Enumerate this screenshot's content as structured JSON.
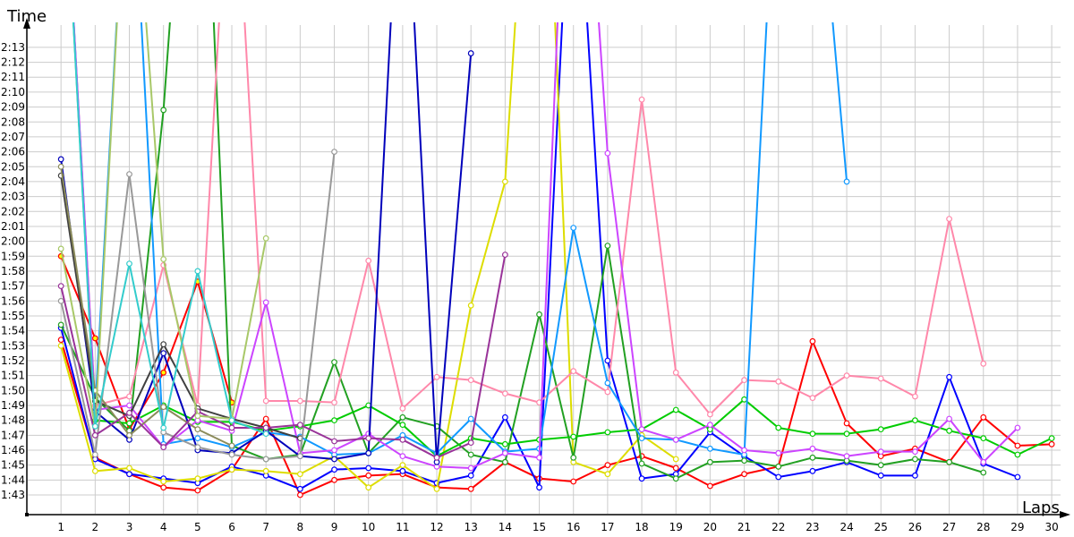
{
  "chart_data": {
    "type": "line",
    "title": "",
    "xlabel": "Laps",
    "ylabel": "Time",
    "xlim": [
      0,
      30.5
    ],
    "ylim": [
      "1:41.7",
      "2:14.7"
    ],
    "grid": true,
    "legend": "none",
    "x_ticks": [
      "1",
      "2",
      "3",
      "4",
      "5",
      "6",
      "7",
      "8",
      "9",
      "10",
      "11",
      "12",
      "13",
      "14",
      "15",
      "16",
      "17",
      "18",
      "19",
      "20",
      "21",
      "22",
      "23",
      "24",
      "25",
      "26",
      "27",
      "28",
      "29",
      "30"
    ],
    "y_ticks": [
      "1:43",
      "1:44",
      "1:45",
      "1:46",
      "1:47",
      "1:48",
      "1:49",
      "1:50",
      "1:51",
      "1:52",
      "1:53",
      "1:54",
      "1:55",
      "1:56",
      "1:57",
      "1:58",
      "1:59",
      "2:00",
      "2:01",
      "2:02",
      "2:03",
      "2:04",
      "2:05",
      "2:06",
      "2:07",
      "2:08",
      "2:09",
      "2:10",
      "2:11",
      "2:12",
      "2:13"
    ],
    "series": [
      {
        "color": "#ff0000",
        "marker_fill": "#ffffff",
        "values": [
          "1:53.4",
          "1:45.5",
          "1:44.4",
          "1:43.5",
          "1:43.3",
          "1:44.7",
          "1:48.1",
          "1:43.0",
          "1:44.0",
          "1:44.3",
          "1:44.4",
          "1:43.5",
          "1:43.4",
          "1:45.2",
          "1:44.1",
          "1:43.9",
          "1:45.0",
          "1:45.6",
          "1:44.8",
          "1:43.6",
          "1:44.4",
          "1:44.9",
          "1:53.3",
          "1:47.8",
          "1:45.6",
          "1:46.1",
          "1:45.2",
          "1:48.2",
          "1:46.3",
          "1:46.4"
        ]
      },
      {
        "color": "#ff0000",
        "marker_fill": "#ffff00",
        "values": [
          "1:59.0",
          "1:53.5",
          "1:47.4",
          "1:51.2",
          "1:57.3",
          "1:49.2"
        ]
      },
      {
        "color": "#0000ff",
        "marker_fill": "#ffffff",
        "values": [
          "1:54.2",
          "1:45.4",
          "1:44.4",
          "1:44.1",
          "1:43.8",
          "1:44.9",
          "1:44.3",
          "1:43.4",
          "1:44.7",
          "1:44.8",
          "1:44.6",
          "1:43.8",
          "1:44.3",
          "1:48.2",
          "1:43.5",
          "2:30.0",
          "1:52.0",
          "1:44.1",
          "1:44.4",
          "1:47.2",
          "1:45.6",
          "1:44.2",
          "1:44.6",
          "1:45.2",
          "1:44.3",
          "1:44.3",
          "1:50.9",
          "1:45.1",
          "1:44.2"
        ]
      },
      {
        "color": "#dddd00",
        "marker_fill": "#ffffff",
        "values": [
          "1:53.0",
          "1:44.6",
          "1:44.8",
          "1:43.9",
          "1:44.1",
          "1:44.7",
          "1:44.6",
          "1:44.4",
          "1:45.6",
          "1:43.5",
          "1:45.0",
          "1:43.4",
          "1:55.7",
          "2:04.0",
          "2:40.0",
          "1:45.2",
          "1:44.4",
          "1:47.0",
          "1:45.4"
        ]
      },
      {
        "color": "#22a022",
        "marker_fill": "#ffffff",
        "values": [
          "1:54.4",
          "1:49.5",
          "1:47.3",
          "2:08.8",
          "2:40.0",
          "1:46.3",
          "1:45.4",
          "1:45.7",
          "1:51.9",
          "1:45.8",
          "1:48.2",
          "1:47.6",
          "1:45.7",
          "1:45.2",
          "1:55.1",
          "1:45.5",
          "1:59.7",
          "1:45.1",
          "1:44.1",
          "1:45.2",
          "1:45.3",
          "1:44.9",
          "1:45.5",
          "1:45.3",
          "1:45.0",
          "1:45.4",
          "1:45.2",
          "1:44.5"
        ]
      },
      {
        "color": "#00cc00",
        "marker_fill": "#ffffff",
        "values": [
          "2:30.0",
          "1:48.0",
          "1:47.8",
          "1:49.0",
          "1:47.9",
          "1:47.9",
          "1:47.3",
          "1:47.6",
          "1:48.0",
          "1:49.0",
          "1:47.7",
          "1:45.6",
          "1:46.8",
          "1:46.4",
          "1:46.7",
          "1:46.9",
          "1:47.2",
          "1:47.4",
          "1:48.7",
          "1:47.4",
          "1:49.4",
          "1:47.5",
          "1:47.1",
          "1:47.1",
          "1:47.4",
          "1:48.0",
          "1:47.3",
          "1:46.8",
          "1:45.7",
          "1:46.8"
        ]
      },
      {
        "color": "#ff88aa",
        "marker_fill": "#ffffff",
        "values": [
          "2:30.0",
          "1:49.0",
          "1:49.6",
          "1:58.4",
          "1:49.0",
          "2:30.0",
          "1:49.3",
          "1:49.3",
          "1:49.2",
          "1:58.7",
          "1:48.8",
          "1:50.9",
          "1:50.7",
          "1:49.8",
          "1:49.2",
          "1:51.3",
          "1:49.9",
          "2:09.5",
          "1:51.2",
          "1:48.4",
          "1:50.7",
          "1:50.6",
          "1:49.5",
          "1:51.0",
          "1:50.8",
          "1:49.6",
          "2:01.5",
          "1:51.8"
        ]
      },
      {
        "color": "#1199ff",
        "marker_fill": "#ffffff",
        "values": [
          "2:30.0",
          "1:48.7",
          "2:30.0",
          "1:46.4",
          "1:46.8",
          "1:46.2",
          "1:47.2",
          "1:46.9",
          "1:45.7",
          "1:45.8",
          "1:47.0",
          "1:45.8",
          "1:48.1",
          "1:45.9",
          "1:46.1",
          "2:00.9",
          "1:50.5",
          "1:46.8",
          "1:46.7",
          "1:46.1",
          "1:45.7",
          "2:30.0",
          "2:30.0",
          "2:04.0"
        ]
      },
      {
        "color": "#cc44ff",
        "marker_fill": "#ffffff",
        "values": [
          "2:30.0",
          "1:48.7",
          "1:49.0",
          "1:46.2",
          "1:48.0",
          "1:47.3",
          "1:55.9",
          "1:45.8",
          "1:46.0",
          "1:47.1",
          "1:45.6",
          "1:44.9",
          "1:44.8",
          "1:45.8",
          "1:45.5",
          "2:40.0",
          "2:05.9",
          "1:47.4",
          "1:46.7",
          "1:47.7",
          "1:46.0",
          "1:45.8",
          "1:46.1",
          "1:45.6",
          "1:45.9",
          "1:45.9",
          "1:48.1",
          "1:45.2",
          "1:47.5"
        ]
      },
      {
        "color": "#0000bb",
        "marker_fill": "#ffffff",
        "values": [
          "2:05.5",
          "1:48.6",
          "1:46.7",
          "1:52.5",
          "1:46.0",
          "1:45.8",
          "1:47.3",
          "1:45.6",
          "1:45.4",
          "1:45.8",
          "2:30.0",
          "1:45.2",
          "2:12.6"
        ]
      },
      {
        "color": "#404040",
        "marker_fill": "#ffffff",
        "values": [
          "2:04.4",
          "1:49.3",
          "1:48.3",
          "1:53.1",
          "1:48.8",
          "1:48.1",
          "1:47.5",
          "1:46.8"
        ]
      },
      {
        "color": "#999999",
        "marker_fill": "#ffffff",
        "values": [
          "1:56.0",
          "1:45.7",
          "2:04.5",
          "1:47.2",
          "1:46.2",
          "1:45.7",
          "1:45.4",
          "1:45.6",
          "2:06.0"
        ]
      },
      {
        "color": "#8b8b5a",
        "marker_fill": "#ffffff",
        "values": [
          "2:05.0",
          "1:50.0",
          "1:47.0",
          "1:48.9",
          "1:47.4",
          "1:46.3"
        ]
      },
      {
        "color": "#993399",
        "marker_fill": "#ffffff",
        "values": [
          "1:57.0",
          "1:47.0",
          "1:48.5",
          "1:46.2",
          "1:48.6",
          "1:47.5",
          "1:47.5",
          "1:47.7",
          "1:46.6",
          "1:46.8",
          "1:46.7",
          "1:45.5",
          "1:46.5",
          "1:59.1"
        ]
      },
      {
        "color": "#a8c868",
        "marker_fill": "#ffffff",
        "values": [
          "1:59.5",
          "1:47.6",
          "2:30.0",
          "1:58.8",
          "1:48.3",
          "1:48.1",
          "2:00.2"
        ]
      },
      {
        "color": "#33cccc",
        "marker_fill": "#ffffff",
        "values": [
          "2:30.0",
          "1:47.6",
          "1:58.5",
          "1:47.5",
          "1:58.0",
          "1:48.0",
          "1:47.1"
        ]
      }
    ]
  }
}
